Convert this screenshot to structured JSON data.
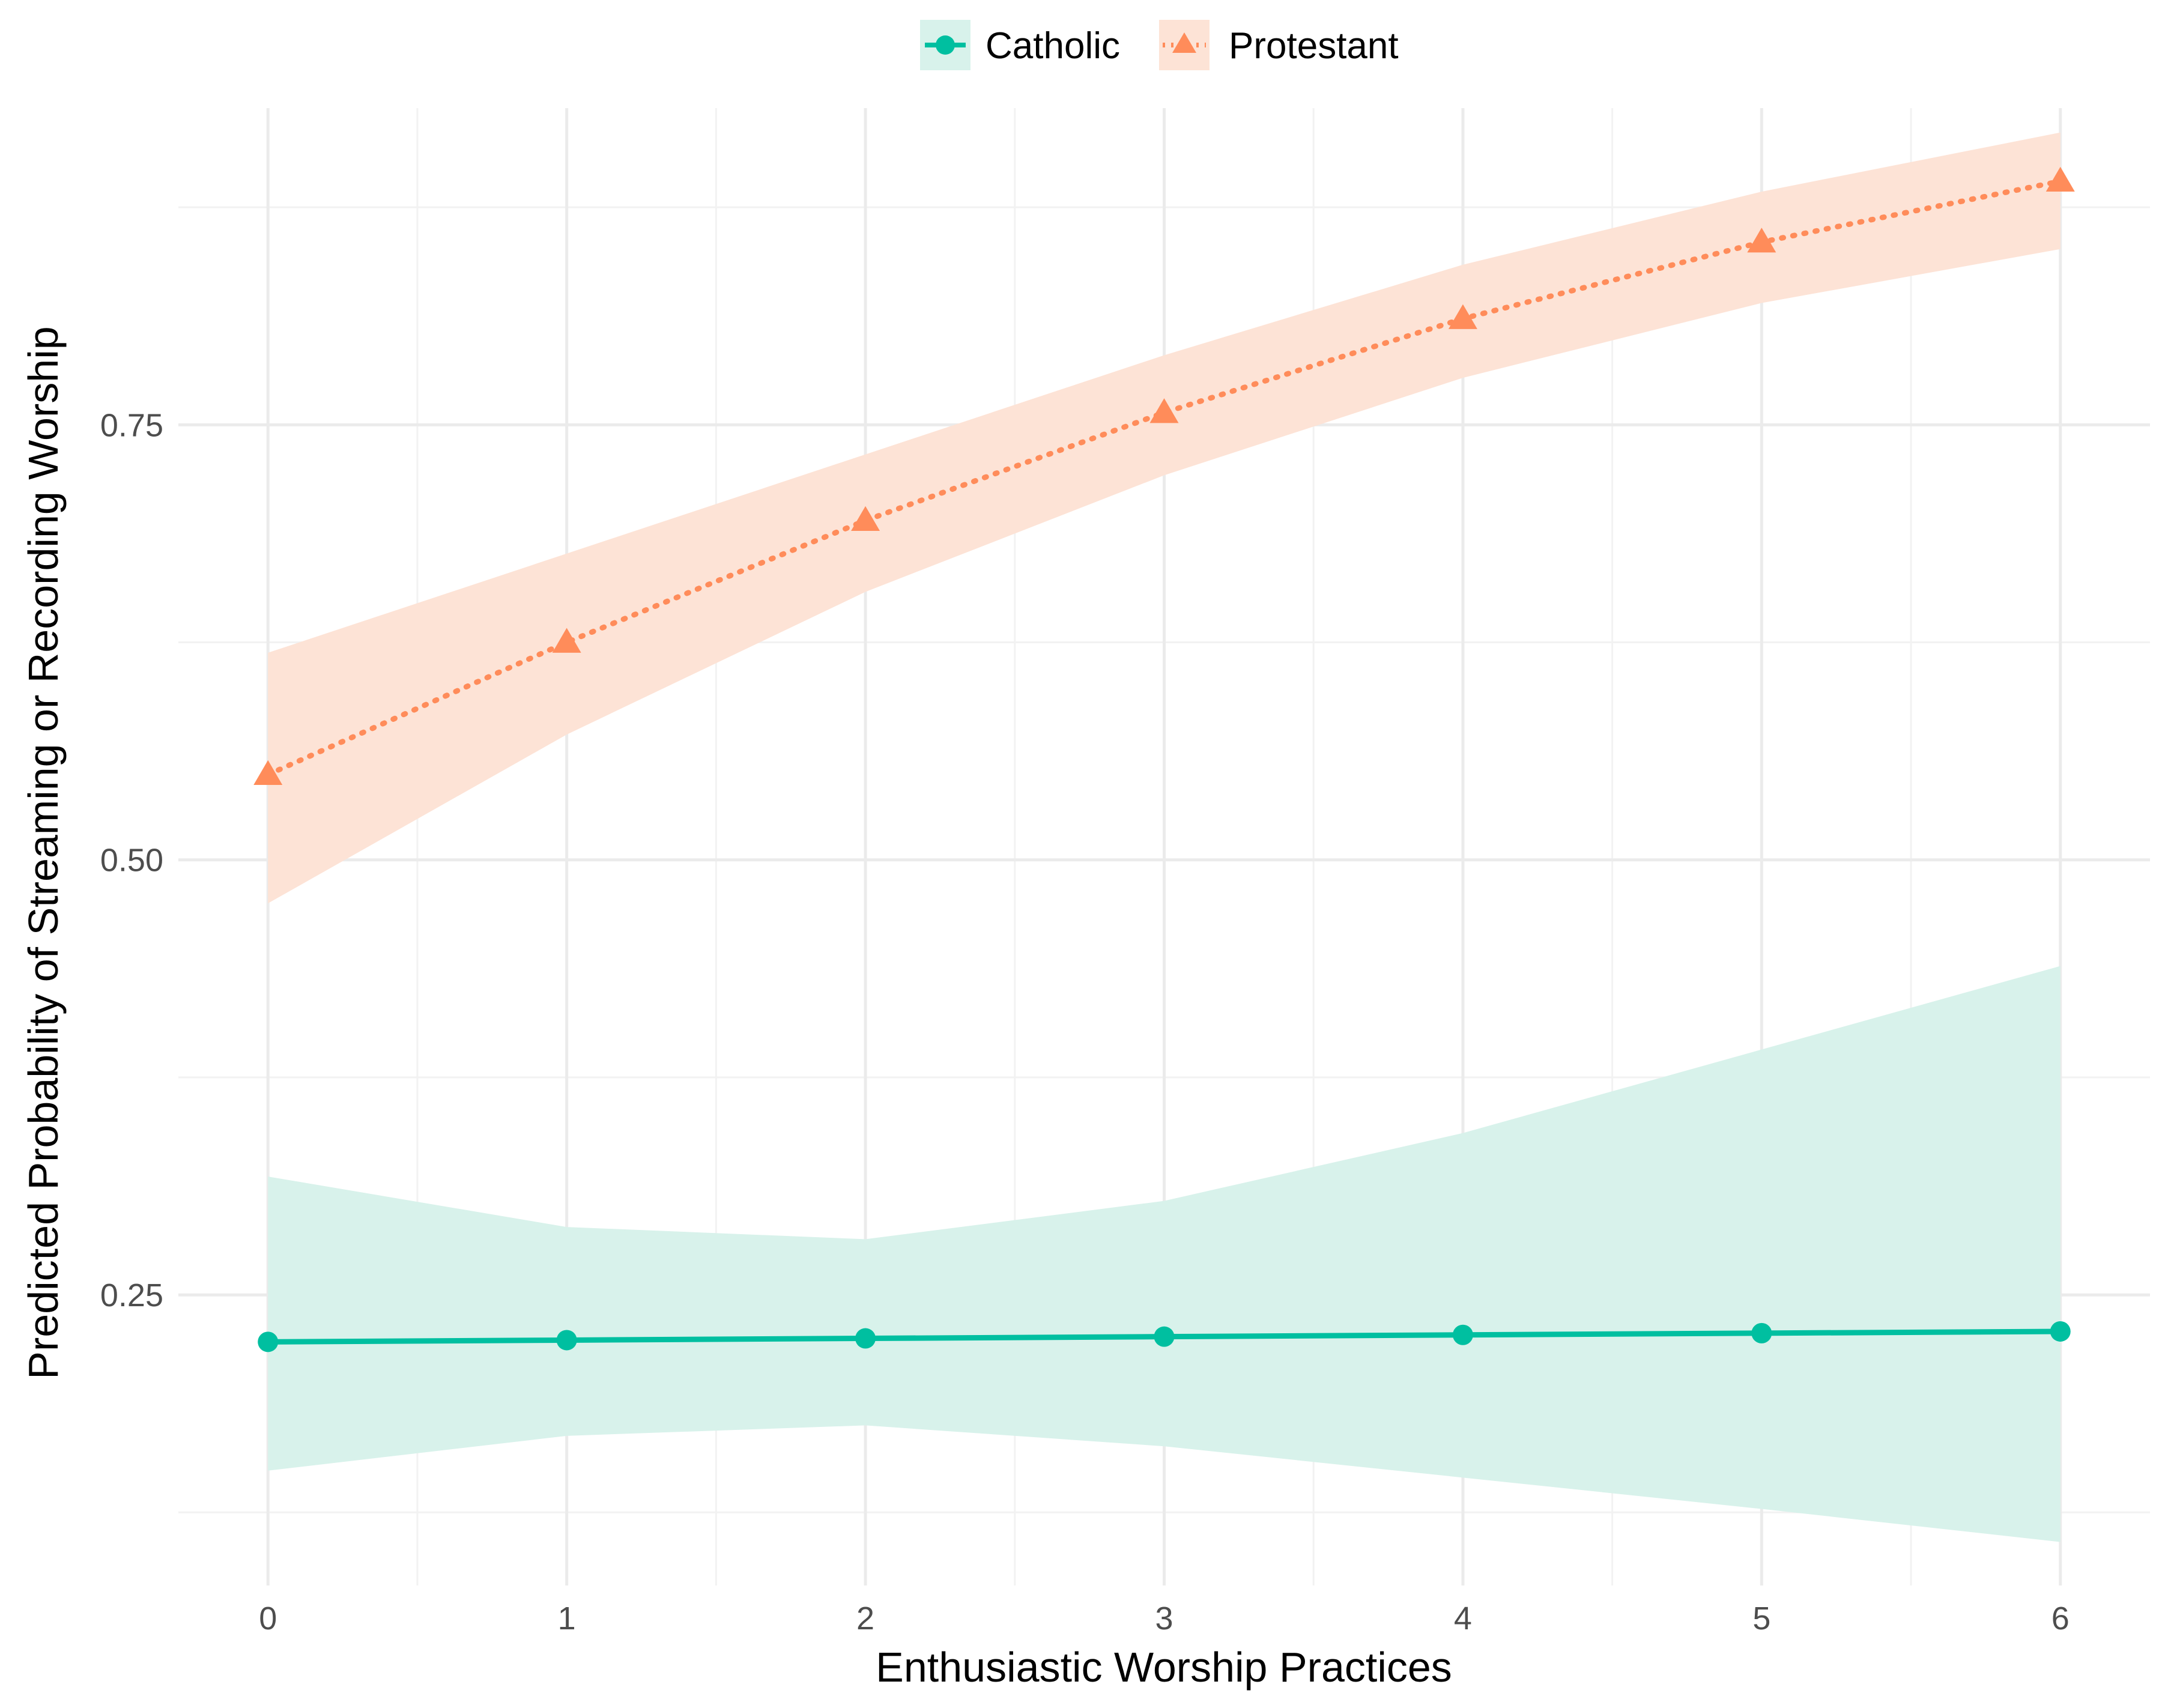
{
  "chart_data": {
    "type": "line",
    "title": "",
    "xlabel": "Enthusiastic Worship Practices",
    "ylabel": "Predicted Probability of Streaming or Recording Worship",
    "x": [
      0,
      1,
      2,
      3,
      4,
      5,
      6
    ],
    "xlim": [
      -0.3,
      6.3
    ],
    "ylim": [
      0.083,
      0.932
    ],
    "x_ticks": [
      "0",
      "1",
      "2",
      "3",
      "4",
      "5",
      "6"
    ],
    "y_ticks": [
      "0.25",
      "0.50",
      "0.75"
    ],
    "legend_position": "top",
    "grid": true,
    "series": [
      {
        "name": "Catholic",
        "color": "#00BFA0",
        "marker": "circle",
        "line_style": "solid",
        "values": [
          0.223,
          0.224,
          0.225,
          0.226,
          0.227,
          0.228,
          0.229
        ],
        "ci_lower": [
          0.149,
          0.169,
          0.175,
          0.163,
          0.145,
          0.127,
          0.108
        ],
        "ci_upper": [
          0.318,
          0.289,
          0.282,
          0.304,
          0.343,
          0.391,
          0.439
        ]
      },
      {
        "name": "Protestant",
        "color": "#FF8C5A",
        "marker": "triangle",
        "line_style": "dotted",
        "values": [
          0.549,
          0.625,
          0.695,
          0.757,
          0.811,
          0.855,
          0.89
        ],
        "ci_lower": [
          0.475,
          0.572,
          0.654,
          0.721,
          0.777,
          0.82,
          0.851
        ],
        "ci_upper": [
          0.619,
          0.676,
          0.733,
          0.79,
          0.842,
          0.884,
          0.918
        ]
      }
    ]
  }
}
